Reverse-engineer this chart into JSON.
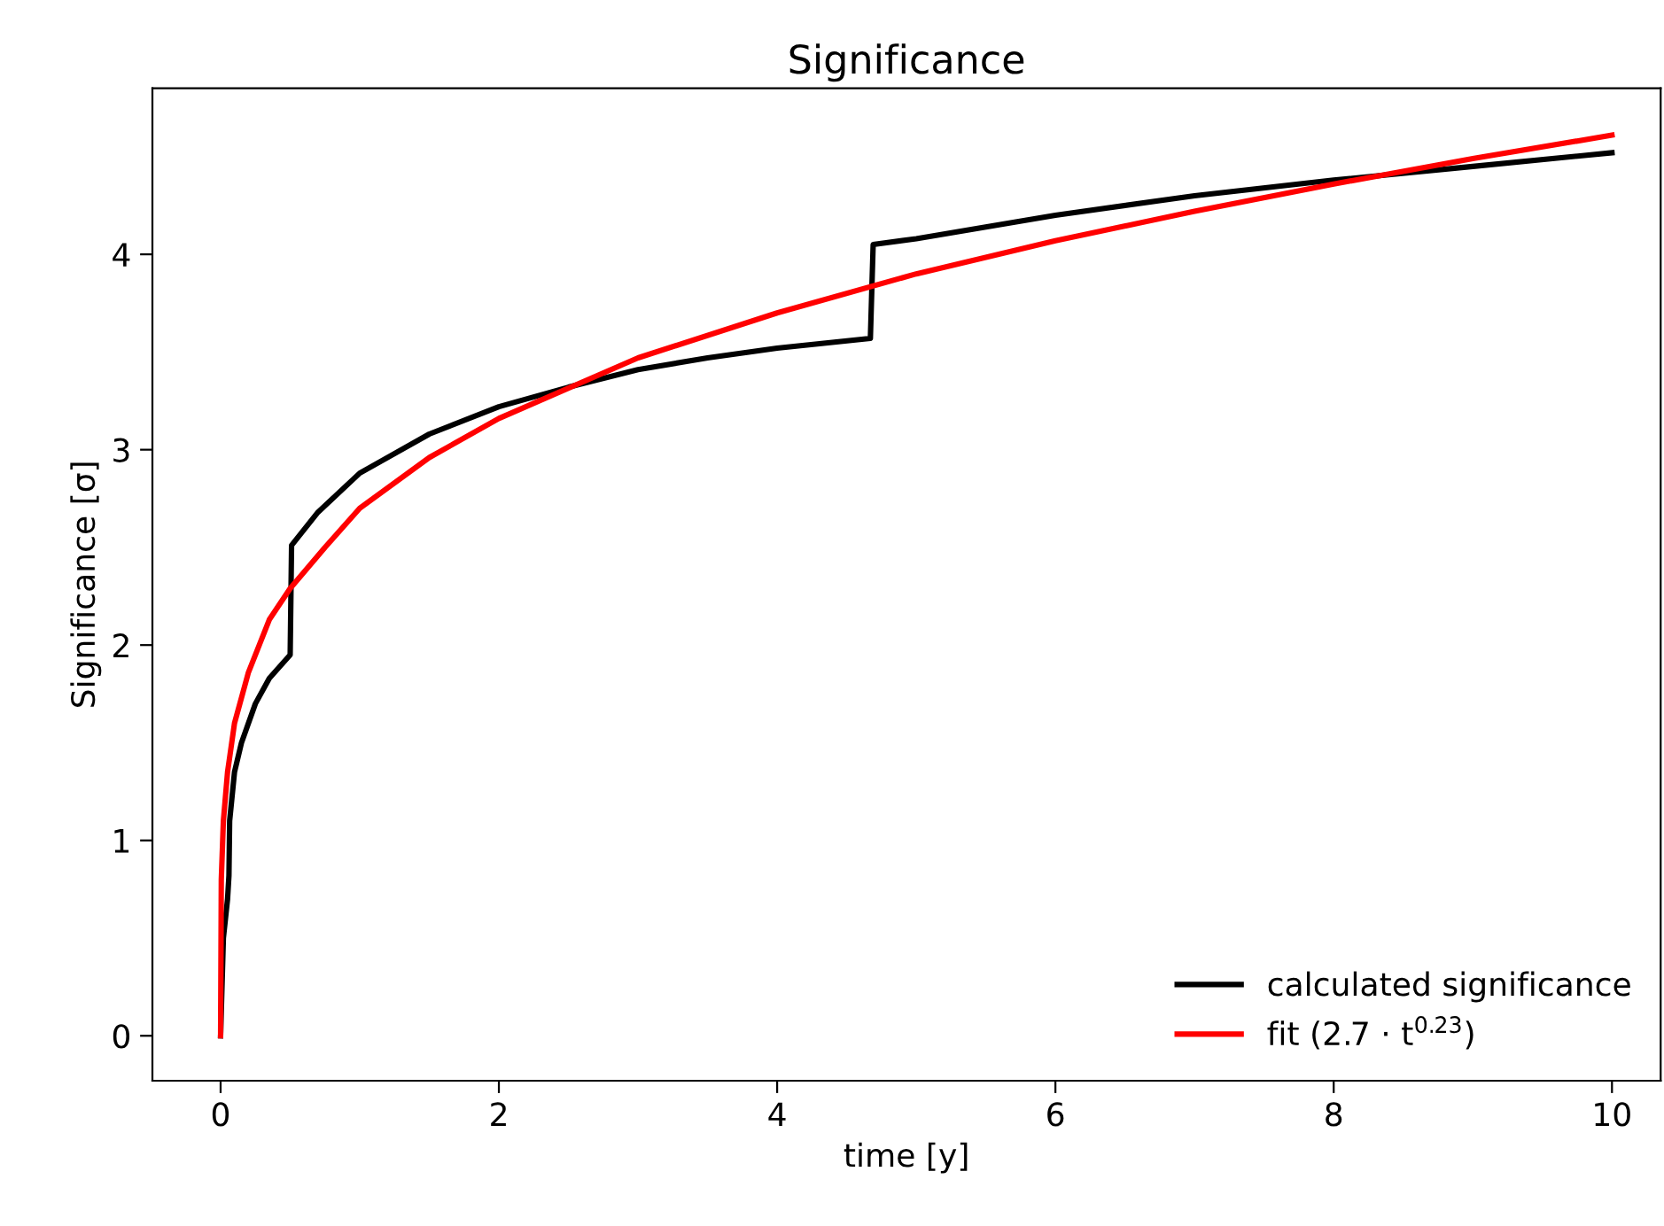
{
  "chart_data": {
    "type": "line",
    "title": "Significance",
    "xlabel": "time [y]",
    "ylabel": "Significance [σ]",
    "xlim": [
      -0.49,
      10.35
    ],
    "ylim": [
      -0.23,
      4.85
    ],
    "xticks": [
      0,
      2,
      4,
      6,
      8,
      10
    ],
    "yticks": [
      0,
      1,
      2,
      3,
      4
    ],
    "grid": false,
    "legend": "bottom right",
    "line_style": "solid",
    "series": [
      {
        "name": "calculated significance",
        "color": "#000000",
        "x": [
          0,
          0.02,
          0.05,
          0.06,
          0.065,
          0.1,
          0.15,
          0.25,
          0.35,
          0.5,
          0.51,
          0.7,
          1,
          1.5,
          2,
          2.5,
          3,
          3.5,
          4,
          4.67,
          4.69,
          5,
          6,
          7,
          8,
          9,
          10
        ],
        "values": [
          0,
          0.5,
          0.7,
          0.82,
          1.1,
          1.35,
          1.5,
          1.7,
          1.83,
          1.95,
          2.51,
          2.68,
          2.88,
          3.08,
          3.22,
          3.32,
          3.41,
          3.47,
          3.52,
          3.57,
          4.05,
          4.08,
          4.2,
          4.3,
          4.38,
          4.45,
          4.52
        ]
      },
      {
        "name": "fit (2.7 · t$^{0.23}$)",
        "color": "#ff0000",
        "x": [
          0,
          0.005,
          0.02,
          0.05,
          0.1,
          0.2,
          0.35,
          0.5,
          0.75,
          1,
          1.5,
          2,
          3,
          4,
          5,
          6,
          7,
          8,
          9,
          10
        ],
        "values": [
          0,
          0.8,
          1.1,
          1.35,
          1.6,
          1.86,
          2.13,
          2.29,
          2.5,
          2.7,
          2.96,
          3.16,
          3.47,
          3.7,
          3.9,
          4.07,
          4.22,
          4.36,
          4.49,
          4.61
        ]
      }
    ]
  }
}
